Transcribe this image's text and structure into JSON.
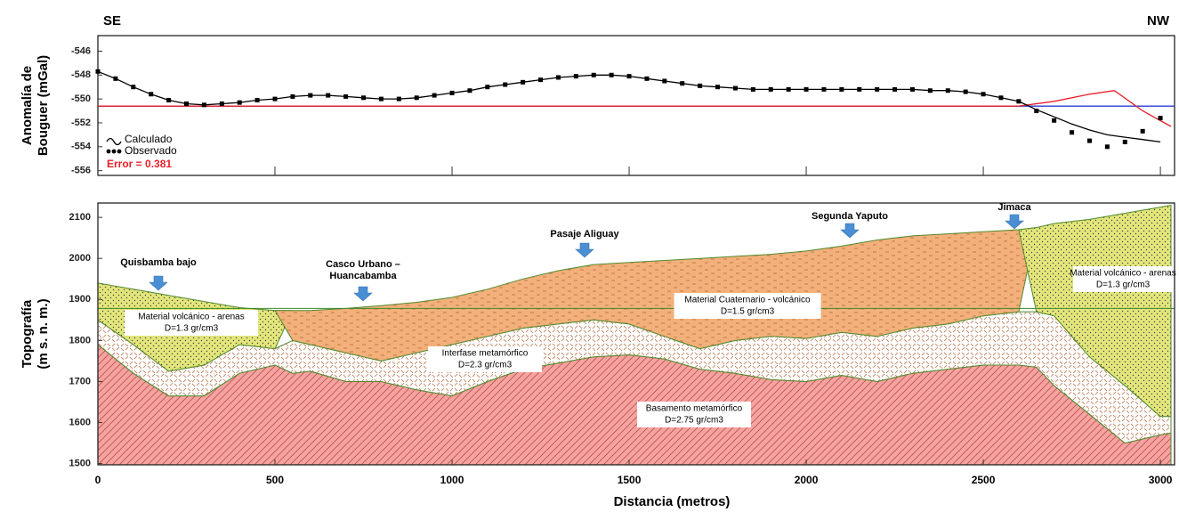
{
  "chart_data": [
    {
      "type": "profile",
      "left_label": "SE",
      "right_label": "NW",
      "y_label": [
        "Anomalía de",
        "Bouguer (mGal)"
      ],
      "annotation": "Error = 0.381",
      "xlim": [
        0,
        3040
      ],
      "ylim": [
        -556.4,
        -544.7
      ],
      "yticks": [
        -546,
        -548,
        -550,
        -552,
        -554,
        -556
      ],
      "x": [
        0,
        50,
        100,
        150,
        200,
        250,
        300,
        350,
        400,
        450,
        500,
        550,
        600,
        650,
        700,
        750,
        800,
        850,
        900,
        950,
        1000,
        1050,
        1100,
        1150,
        1200,
        1250,
        1300,
        1350,
        1400,
        1450,
        1500,
        1550,
        1600,
        1650,
        1700,
        1750,
        1800,
        1850,
        1900,
        1950,
        2000,
        2050,
        2100,
        2150,
        2200,
        2250,
        2300,
        2350,
        2400,
        2450,
        2500,
        2550,
        2600,
        2650,
        2700,
        2750,
        2800,
        2850,
        2900,
        2950,
        3000
      ],
      "series": [
        {
          "name": "Calculado",
          "kind": "line",
          "color": "#000000",
          "values": [
            -547.7,
            -548.3,
            -549.0,
            -549.6,
            -550.1,
            -550.4,
            -550.5,
            -550.4,
            -550.3,
            -550.1,
            -550.0,
            -549.8,
            -549.7,
            -549.7,
            -549.8,
            -549.9,
            -550.0,
            -550.0,
            -549.9,
            -549.7,
            -549.5,
            -549.3,
            -549.0,
            -548.8,
            -548.6,
            -548.4,
            -548.2,
            -548.1,
            -548.0,
            -548.0,
            -548.1,
            -548.3,
            -548.5,
            -548.7,
            -548.9,
            -549.0,
            -549.1,
            -549.2,
            -549.2,
            -549.2,
            -549.2,
            -549.2,
            -549.2,
            -549.2,
            -549.2,
            -549.2,
            -549.2,
            -549.3,
            -549.3,
            -549.4,
            -549.6,
            -549.9,
            -550.2,
            -550.9,
            -551.5,
            -552.1,
            -552.6,
            -553.0,
            -553.2,
            -553.4,
            -553.6
          ]
        },
        {
          "name": "Observado",
          "kind": "points",
          "color": "#000000",
          "values": [
            -547.7,
            -548.3,
            -549.0,
            -549.6,
            -550.1,
            -550.4,
            -550.5,
            -550.4,
            -550.3,
            -550.1,
            -550.0,
            -549.8,
            -549.7,
            -549.7,
            -549.8,
            -549.9,
            -550.0,
            -550.0,
            -549.9,
            -549.7,
            -549.5,
            -549.3,
            -549.0,
            -548.8,
            -548.6,
            -548.4,
            -548.2,
            -548.1,
            -548.0,
            -548.0,
            -548.1,
            -548.3,
            -548.5,
            -548.7,
            -548.9,
            -549.0,
            -549.1,
            -549.2,
            -549.2,
            -549.2,
            -549.2,
            -549.2,
            -549.2,
            -549.2,
            -549.2,
            -549.2,
            -549.2,
            -549.3,
            -549.3,
            -549.4,
            -549.6,
            -549.9,
            -550.2,
            -551.0,
            -551.8,
            -552.8,
            -553.5,
            -554.0,
            -553.6,
            -552.7,
            -551.6
          ]
        },
        {
          "kind": "line",
          "color": "#2b3fd6",
          "x": [
            0,
            3040
          ],
          "values": [
            -550.6,
            -550.6
          ]
        },
        {
          "kind": "line",
          "color": "#e8202a",
          "x": [
            0,
            2600,
            2700,
            2800,
            2870,
            2950,
            3030
          ],
          "values": [
            -550.6,
            -550.6,
            -550.2,
            -549.6,
            -549.3,
            -551.0,
            -552.3
          ]
        }
      ]
    },
    {
      "type": "section",
      "x_label": "Distancia (metros)",
      "y_label": [
        "Topografía",
        "(m s. n. m.)"
      ],
      "xlim": [
        0,
        3040
      ],
      "ylim": [
        1497,
        2135
      ],
      "xticks": [
        0,
        500,
        1000,
        1500,
        2000,
        2500,
        3000
      ],
      "yticks": [
        1500,
        1600,
        1700,
        1800,
        1900,
        2000,
        2100
      ],
      "x": [
        0,
        100,
        200,
        300,
        400,
        500,
        550,
        600,
        700,
        800,
        900,
        1000,
        1100,
        1200,
        1300,
        1400,
        1500,
        1600,
        1700,
        1800,
        1900,
        2000,
        2100,
        2200,
        2300,
        2400,
        2500,
        2600,
        2650,
        2700,
        2800,
        2900,
        3000,
        3030
      ],
      "level": 1878,
      "layers": [
        {
          "label": "Basamento metamórfico",
          "density": "D=2.75 gr/cm3",
          "color": "#f4a3a0",
          "top": [
            1790,
            1720,
            1665,
            1665,
            1720,
            1740,
            1720,
            1725,
            1700,
            1700,
            1680,
            1665,
            1700,
            1730,
            1745,
            1760,
            1765,
            1755,
            1730,
            1720,
            1705,
            1700,
            1715,
            1700,
            1720,
            1730,
            1740,
            1740,
            1735,
            1690,
            1620,
            1550,
            1570,
            1575
          ],
          "bottom": [
            1497,
            1497,
            1497,
            1497,
            1497,
            1497,
            1497,
            1497,
            1497,
            1497,
            1497,
            1497,
            1497,
            1497,
            1497,
            1497,
            1497,
            1497,
            1497,
            1497,
            1497,
            1497,
            1497,
            1497,
            1497,
            1497,
            1497,
            1497,
            1497,
            1497,
            1497,
            1497,
            1497,
            1497
          ]
        },
        {
          "label": "Interfase metamórfico",
          "density": "D=2.3 gr/cm3",
          "color": "#ffffff",
          "top": [
            1850,
            1790,
            1725,
            1740,
            1790,
            1780,
            1800,
            1790,
            1770,
            1750,
            1770,
            1790,
            1810,
            1830,
            1840,
            1850,
            1840,
            1810,
            1780,
            1800,
            1810,
            1805,
            1820,
            1810,
            1830,
            1840,
            1860,
            1870,
            1870,
            1860,
            1760,
            1690,
            1615,
            1615
          ],
          "bottom": [
            1790,
            1720,
            1665,
            1665,
            1720,
            1740,
            1720,
            1725,
            1700,
            1700,
            1680,
            1665,
            1700,
            1730,
            1745,
            1760,
            1765,
            1755,
            1730,
            1720,
            1705,
            1700,
            1715,
            1700,
            1720,
            1730,
            1740,
            1740,
            1735,
            1690,
            1620,
            1550,
            1570,
            1575
          ]
        },
        {
          "label": "Material volcánico - arenas",
          "density": "D=1.3 gr/cm3",
          "color": "#e3e67a",
          "top": [
            1940,
            1925,
            1910,
            1895,
            1880,
            1873,
            1873,
            null,
            null,
            null,
            null,
            null,
            null,
            null,
            null,
            null,
            null,
            null,
            null,
            null,
            null,
            null,
            null,
            null,
            null,
            null,
            null,
            null,
            null,
            null,
            null,
            null,
            null,
            null
          ],
          "bottom": [
            1850,
            1790,
            1725,
            1740,
            1790,
            1780,
            1873,
            null,
            null,
            null,
            null,
            null,
            null,
            null,
            null,
            null,
            null,
            null,
            null,
            null,
            null,
            null,
            null,
            null,
            null,
            null,
            null,
            null,
            null,
            null,
            null,
            null,
            null,
            null
          ]
        },
        {
          "label": "Material Cuaternario - volcánico",
          "density": "D=1.5 gr/cm3",
          "color": "#f3b07a",
          "top": [
            null,
            null,
            null,
            null,
            null,
            1873,
            1873,
            1873,
            1878,
            1885,
            1893,
            1905,
            1925,
            1950,
            1970,
            1985,
            1990,
            1995,
            2000,
            2005,
            2010,
            2018,
            2030,
            2045,
            2055,
            2060,
            2065,
            2070,
            2075,
            null,
            null,
            null,
            null,
            null
          ],
          "bottom": [
            null,
            null,
            null,
            null,
            null,
            1873,
            1800,
            1790,
            1770,
            1750,
            1770,
            1790,
            1810,
            1830,
            1840,
            1850,
            1840,
            1810,
            1780,
            1800,
            1810,
            1805,
            1820,
            1810,
            1830,
            1840,
            1860,
            1870,
            2075,
            null,
            null,
            null,
            null,
            null
          ]
        },
        {
          "label": "Material volcánico - arenas",
          "density": "D=1.3 gr/cm3",
          "color": "#e3e67a",
          "top": [
            null,
            null,
            null,
            null,
            null,
            null,
            null,
            null,
            null,
            null,
            null,
            null,
            null,
            null,
            null,
            null,
            null,
            null,
            null,
            null,
            null,
            null,
            null,
            null,
            null,
            null,
            null,
            2070,
            2075,
            2085,
            2095,
            2110,
            2125,
            2130
          ],
          "bottom": [
            null,
            null,
            null,
            null,
            null,
            null,
            null,
            null,
            null,
            null,
            null,
            null,
            null,
            null,
            null,
            null,
            null,
            null,
            null,
            null,
            null,
            null,
            null,
            null,
            null,
            null,
            null,
            2070,
            1870,
            1860,
            1760,
            1690,
            1615,
            1615
          ]
        }
      ],
      "places": [
        {
          "lines": [
            "Quisbamba bajo"
          ]
        },
        {
          "lines": [
            "Casco Urbano –",
            "Huancabamba"
          ]
        },
        {
          "lines": [
            "Pasaje Aliguay"
          ]
        },
        {
          "lines": [
            "Segunda Yaputo"
          ]
        },
        {
          "lines": [
            "Jimaca"
          ]
        }
      ]
    }
  ]
}
